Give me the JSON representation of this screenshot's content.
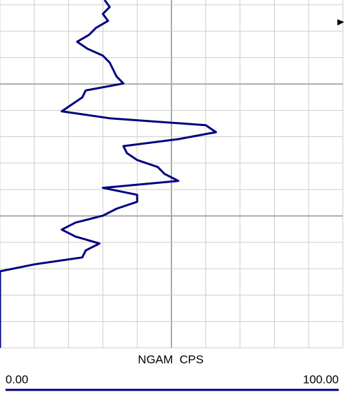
{
  "chart_data": {
    "type": "line",
    "x_axis_label": "NGAM  CPS",
    "color": "#000080",
    "values": [
      30.5,
      32,
      30,
      31.5,
      28,
      26,
      22.5,
      25.5,
      30,
      32,
      33,
      34,
      36,
      25,
      24,
      21,
      18,
      32,
      60,
      63,
      52,
      36,
      37,
      40,
      46,
      48,
      52,
      30,
      40,
      40,
      34,
      30,
      22,
      18,
      22,
      29,
      25,
      24,
      10,
      0,
      0,
      0,
      0,
      0,
      0,
      0,
      0,
      0,
      0,
      0,
      0
    ],
    "xlim": [
      0,
      100
    ],
    "xticks": [
      {
        "value": 0,
        "label": "0.00"
      },
      {
        "value": 100,
        "label": "100.00"
      }
    ],
    "grid": true
  }
}
